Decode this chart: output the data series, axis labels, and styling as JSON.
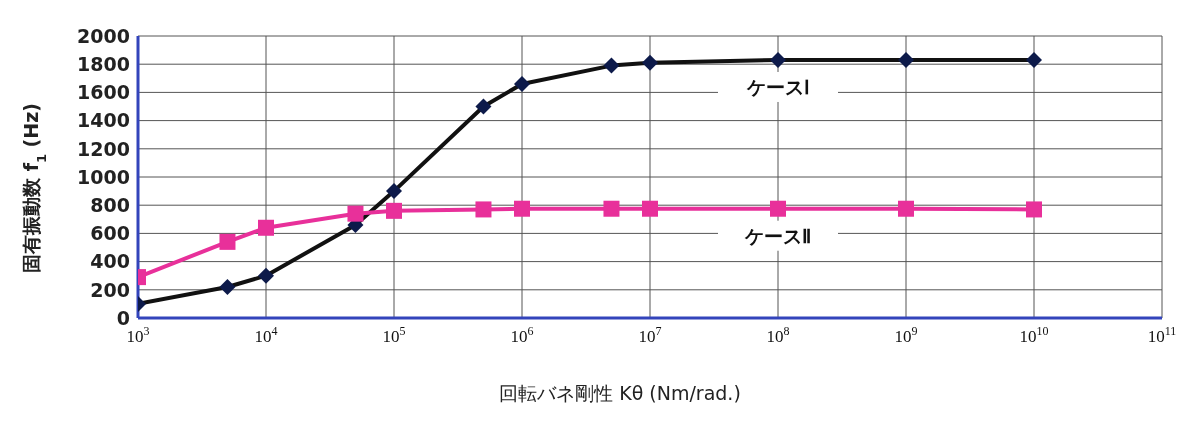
{
  "chart_data": {
    "type": "line",
    "xlabel": "回転バネ剛性 Kθ (Nm/rad.)",
    "ylabel": "固有振動数 f$_{1}$ (Hz)",
    "x": [
      1000,
      5000,
      10000,
      50000,
      100000,
      500000,
      1000000,
      5000000,
      10000000,
      100000000,
      1000000000,
      10000000000
    ],
    "series": [
      {
        "name": "ケースⅠ",
        "color": "#0d1a4a",
        "marker": "diamond",
        "values": [
          100,
          220,
          300,
          660,
          900,
          1500,
          1660,
          1790,
          1810,
          1830,
          1830,
          1830
        ]
      },
      {
        "name": "ケースⅡ",
        "color": "#e8309a",
        "marker": "square",
        "values": [
          290,
          540,
          640,
          740,
          760,
          770,
          775,
          775,
          775,
          775,
          775,
          770
        ]
      }
    ],
    "log": "x",
    "xlim": [
      1000,
      100000000000
    ],
    "xticks": [
      {
        "value": 1000,
        "label": "10$^{3}$"
      },
      {
        "value": 10000,
        "label": "10$^{4}$"
      },
      {
        "value": 100000,
        "label": "10$^{5}$"
      },
      {
        "value": 1000000,
        "label": "10$^{6}$"
      },
      {
        "value": 10000000,
        "label": "10$^{7}$"
      },
      {
        "value": 100000000,
        "label": "10$^{8}$"
      },
      {
        "value": 1000000000,
        "label": "10$^{9}$"
      },
      {
        "value": 10000000000,
        "label": "10$^{10}$"
      },
      {
        "value": 100000000000,
        "label": "10$^{11}$"
      }
    ],
    "ylim": [
      0,
      2000
    ],
    "yticks": [
      0,
      200,
      400,
      600,
      800,
      1000,
      1200,
      1400,
      1600,
      1800,
      2000
    ],
    "grid": true,
    "legend": false,
    "line_style": "solid"
  }
}
